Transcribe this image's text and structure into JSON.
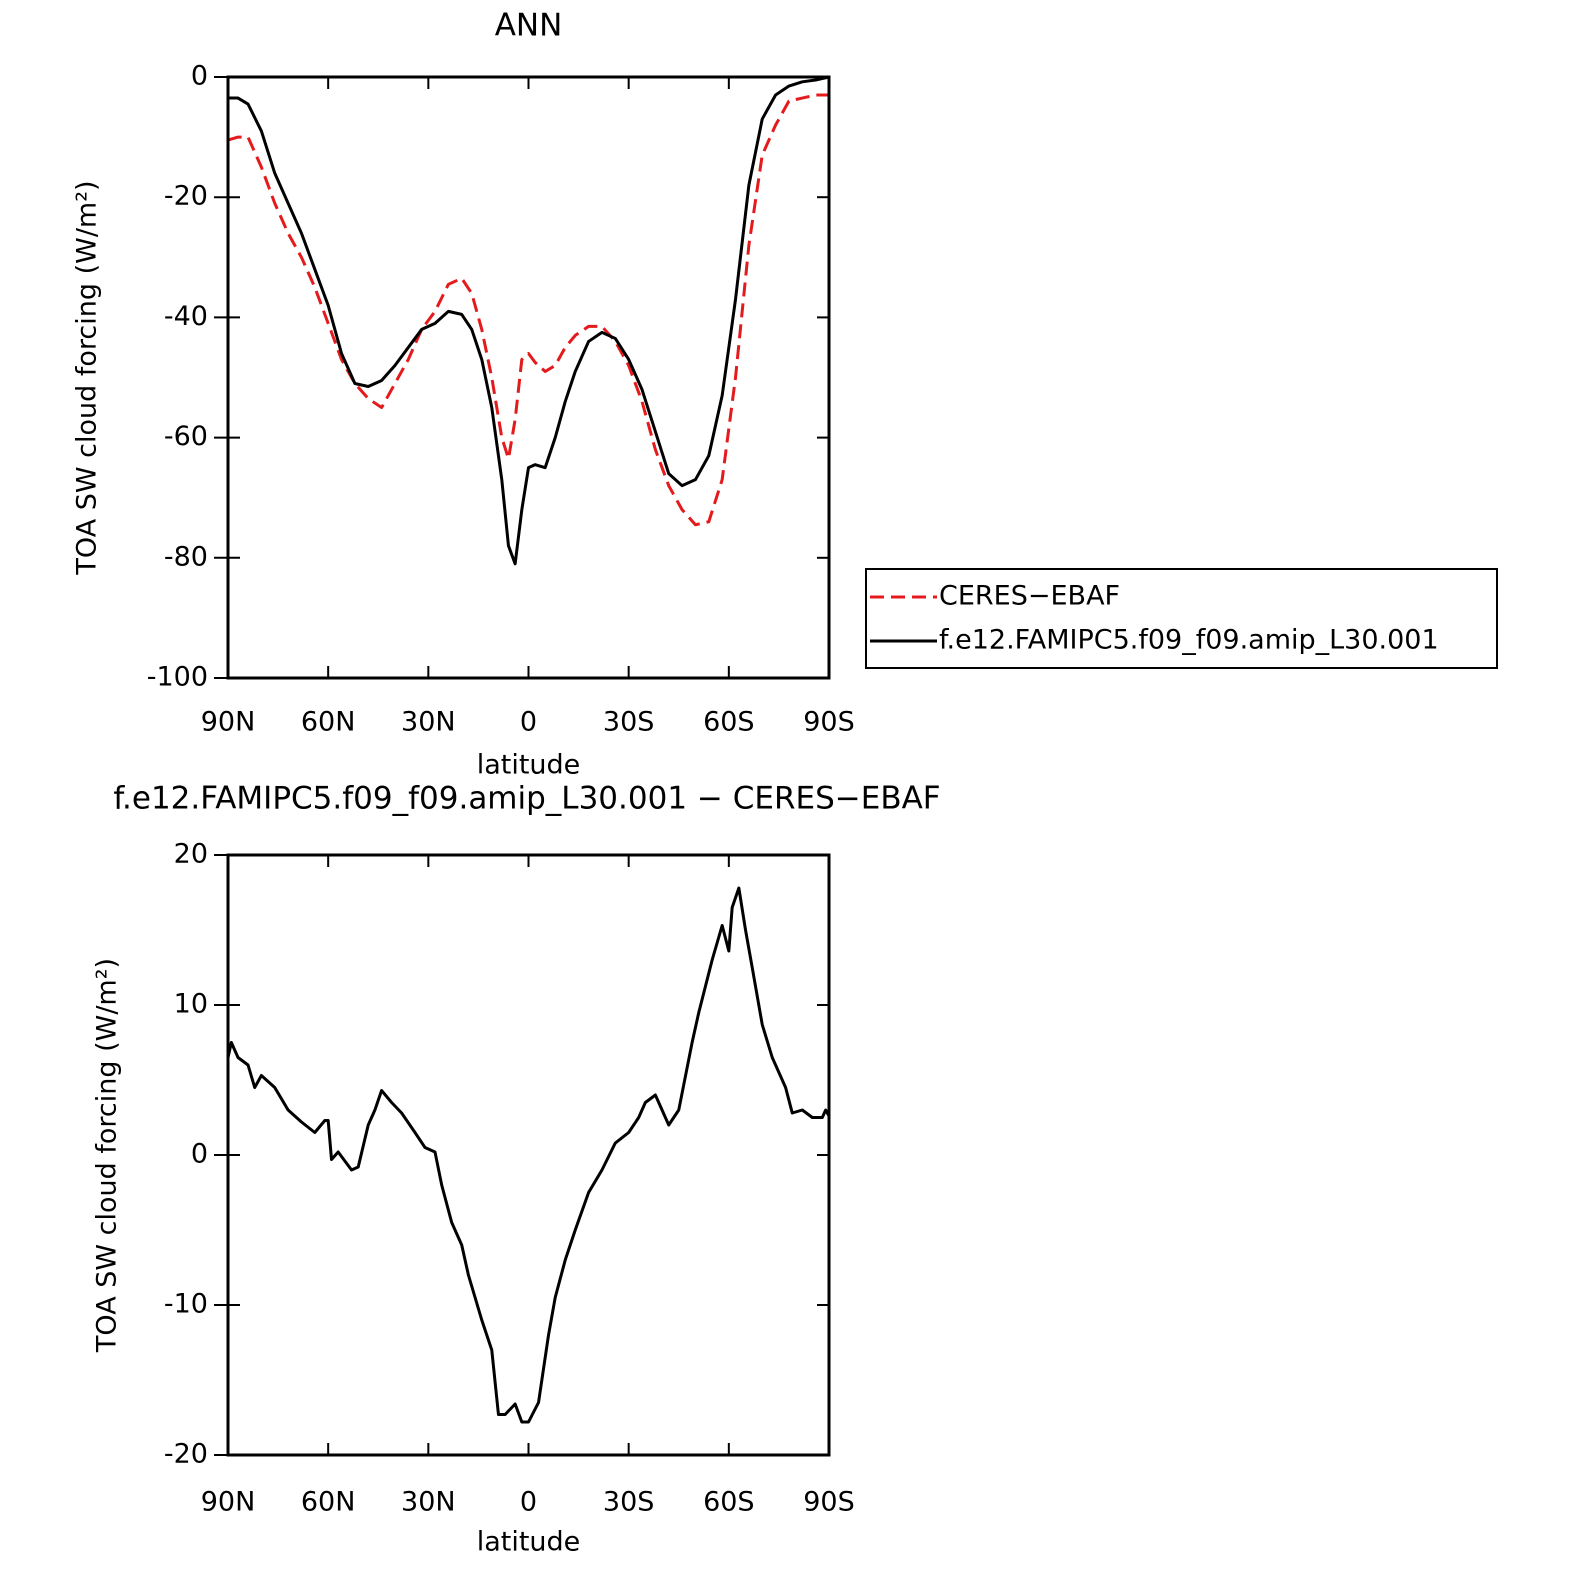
{
  "chart_data": [
    {
      "type": "line",
      "title": "ANN",
      "xlabel": "latitude",
      "ylabel": "TOA SW cloud forcing (W/m²)",
      "x": [
        90,
        87,
        84,
        80,
        76,
        72,
        68,
        64,
        60,
        56,
        52,
        48,
        44,
        40,
        36,
        32,
        28,
        24,
        20,
        17,
        14,
        11,
        8,
        6,
        4,
        2,
        0,
        -2,
        -5,
        -8,
        -11,
        -14,
        -18,
        -22,
        -26,
        -30,
        -34,
        -38,
        -42,
        -46,
        -50,
        -54,
        -58,
        -62,
        -66,
        -70,
        -74,
        -78,
        -82,
        -86,
        -90
      ],
      "series": [
        {
          "name": "CERES−EBAF",
          "color": "#e41a1c",
          "dashed": true,
          "values": [
            -10.5,
            -10,
            -10,
            -15,
            -21,
            -26,
            -30,
            -35,
            -41,
            -47,
            -51,
            -53.5,
            -55,
            -51,
            -47,
            -42,
            -39,
            -34.5,
            -33.5,
            -36,
            -42,
            -50,
            -60,
            -63.5,
            -57,
            -47,
            -46,
            -47.5,
            -49,
            -48,
            -45,
            -43,
            -41.5,
            -41.5,
            -44,
            -48,
            -54,
            -62,
            -68,
            -72,
            -74.5,
            -74,
            -67,
            -50,
            -28,
            -13,
            -8,
            -4,
            -3.5,
            -3,
            -3
          ]
        },
        {
          "name": "f.e12.FAMIPC5.f09_f09.amip_L30.001",
          "color": "#000000",
          "dashed": false,
          "values": [
            -3.5,
            -3.5,
            -4.5,
            -9,
            -16,
            -21,
            -26,
            -32,
            -38,
            -46,
            -51,
            -51.5,
            -50.5,
            -48,
            -45,
            -42,
            -41,
            -39,
            -39.5,
            -42,
            -47,
            -55,
            -67,
            -78,
            -81,
            -72,
            -65,
            -64.5,
            -65,
            -60,
            -54,
            -49,
            -44,
            -42.5,
            -43.5,
            -47,
            -52,
            -59,
            -66,
            -68,
            -67,
            -63,
            -53,
            -37,
            -18,
            -7,
            -3,
            -1.5,
            -0.8,
            -0.5,
            0
          ]
        }
      ],
      "xlim": [
        90,
        -90
      ],
      "xticks": [
        {
          "value": 90,
          "label": "90N"
        },
        {
          "value": 60,
          "label": "60N"
        },
        {
          "value": 30,
          "label": "30N"
        },
        0,
        {
          "value": -30,
          "label": "30S"
        },
        {
          "value": -60,
          "label": "60S"
        },
        {
          "value": -90,
          "label": "90S"
        }
      ],
      "ylim": [
        -100,
        0
      ],
      "yticks": [
        -100,
        -80,
        -60,
        -40,
        -20,
        0
      ],
      "legend": "outside right"
    },
    {
      "type": "line",
      "title": "f.e12.FAMIPC5.f09_f09.amip_L30.001 − CERES−EBAF",
      "xlabel": "latitude",
      "ylabel": "TOA SW cloud forcing (W/m²)",
      "x": [
        90,
        89,
        87,
        84,
        82,
        80,
        76,
        72,
        68,
        64,
        61,
        60,
        59,
        57,
        53,
        51,
        48,
        46,
        44,
        41,
        38,
        34,
        31,
        28,
        26,
        23,
        20,
        18,
        14,
        11,
        9,
        7,
        4,
        2,
        0,
        -3,
        -6,
        -8,
        -11,
        -14,
        -18,
        -22,
        -26,
        -30,
        -33,
        -35,
        -38,
        -42,
        -45,
        -49,
        -51,
        -55,
        -58,
        -60,
        -61,
        -63,
        -65,
        -67,
        -70,
        -73,
        -75,
        -77,
        -79,
        -82,
        -85,
        -88,
        -89,
        -90
      ],
      "values": [
        6.5,
        7.5,
        6.5,
        6,
        4.5,
        5.3,
        4.5,
        3,
        2.2,
        1.5,
        2.3,
        2.3,
        -0.3,
        0.2,
        -1,
        -0.8,
        2,
        3,
        4.3,
        3.5,
        2.8,
        1.5,
        0.5,
        0.2,
        -2,
        -4.5,
        -6,
        -8,
        -11,
        -13,
        -17.3,
        -17.3,
        -16.6,
        -17.8,
        -17.8,
        -16.5,
        -12,
        -9.5,
        -7,
        -5,
        -2.5,
        -1,
        0.8,
        1.5,
        2.5,
        3.5,
        4,
        2,
        3,
        7.5,
        9.5,
        13,
        15.3,
        13.6,
        16.5,
        17.8,
        15,
        12.5,
        8.7,
        6.5,
        5.5,
        4.5,
        2.8,
        3,
        2.5,
        2.5,
        3,
        2.6
      ],
      "color": "#000000",
      "xlim": [
        90,
        -90
      ],
      "xticks": [
        {
          "value": 90,
          "label": "90N"
        },
        {
          "value": 60,
          "label": "60N"
        },
        {
          "value": 30,
          "label": "30N"
        },
        0,
        {
          "value": -30,
          "label": "30S"
        },
        {
          "value": -60,
          "label": "60S"
        },
        {
          "value": -90,
          "label": "90S"
        }
      ],
      "ylim": [
        -20,
        20
      ],
      "yticks": [
        -20,
        -10,
        0,
        10,
        20
      ]
    }
  ]
}
